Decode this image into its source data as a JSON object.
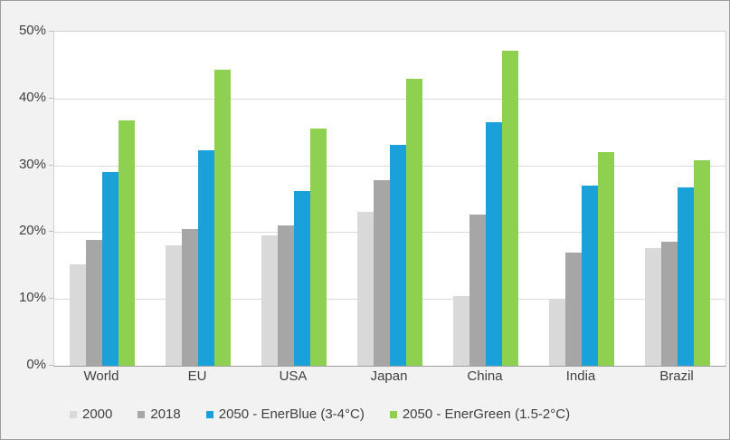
{
  "chart_data": {
    "type": "bar",
    "title": "",
    "xlabel": "",
    "ylabel": "",
    "categories": [
      "World",
      "EU",
      "USA",
      "Japan",
      "China",
      "India",
      "Brazil"
    ],
    "series": [
      {
        "name": "2000",
        "color": "#d9d9d9",
        "values": [
          15.2,
          18.0,
          19.5,
          23.1,
          10.5,
          10.0,
          17.6
        ]
      },
      {
        "name": "2018",
        "color": "#a6a6a6",
        "values": [
          18.8,
          20.5,
          21.0,
          27.8,
          22.6,
          17.0,
          18.6
        ]
      },
      {
        "name": "2050 - EnerBlue (3-4°C)",
        "color": "#1ba1d9",
        "values": [
          29.0,
          32.3,
          26.2,
          33.1,
          36.4,
          27.0,
          26.7
        ]
      },
      {
        "name": "2050 - EnerGreen (1.5-2°C)",
        "color": "#8ed04f",
        "values": [
          36.7,
          44.3,
          35.5,
          42.9,
          47.2,
          32.0,
          30.8
        ]
      }
    ],
    "ylim": [
      0,
      50
    ],
    "yticks": [
      0,
      10,
      20,
      30,
      40,
      50
    ],
    "ytick_suffix": "%",
    "grid": true,
    "legend_position": "bottom-left"
  },
  "colors": {
    "frame_background": "#f2f2f2",
    "plot_background": "#ffffff",
    "gridline": "#d9d9d9",
    "axis_line": "#9e9e9e",
    "text": "#404040",
    "frame_border": "#9c9c9c"
  }
}
